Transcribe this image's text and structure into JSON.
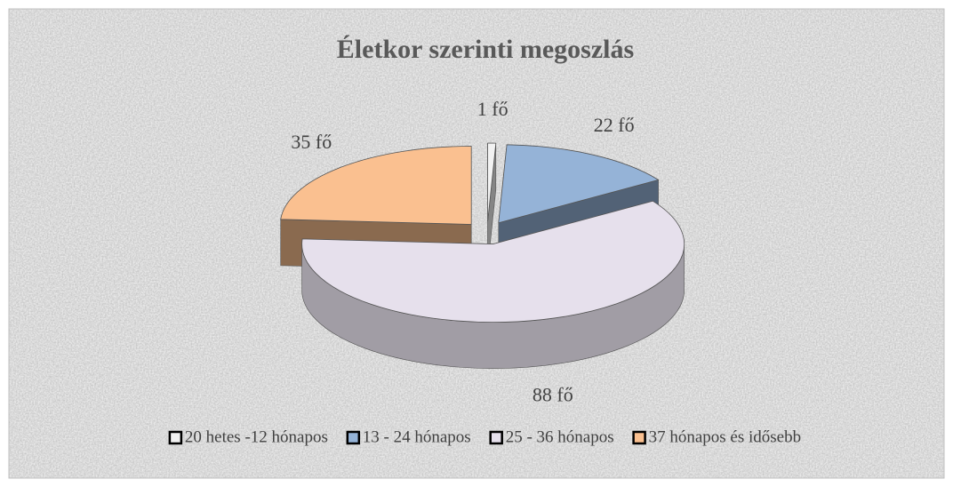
{
  "chart_data": {
    "type": "pie",
    "title": "Életkor szerinti megoszlás",
    "categories": [
      "20 hetes -12 hónapos",
      "13 - 24 hónapos",
      "25 - 36 hónapos",
      "37 hónapos és idősebb"
    ],
    "values": [
      1,
      22,
      88,
      35
    ],
    "value_labels": [
      "1 fő",
      "22 fő",
      "88 fő",
      "35 fő"
    ],
    "colors": [
      "#f2f2f2",
      "#95b3d7",
      "#e6e0ec",
      "#fac090"
    ],
    "legend": "bottom"
  }
}
